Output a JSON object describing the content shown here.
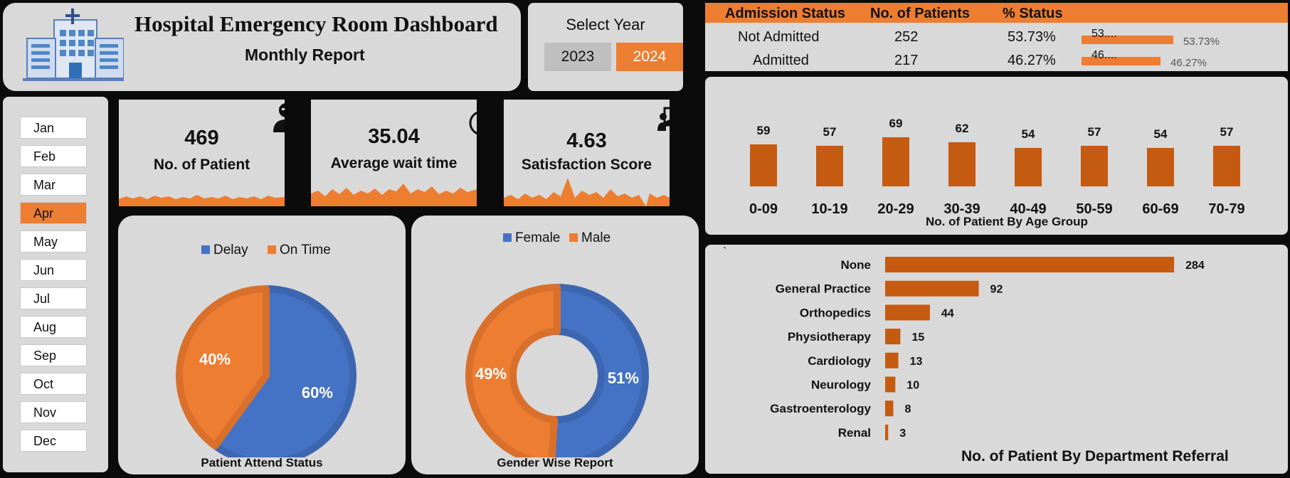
{
  "header": {
    "title": "Hospital Emergency Room Dashboard",
    "subtitle": "Monthly Report"
  },
  "year_select": {
    "label": "Select Year",
    "options": [
      "2023",
      "2024"
    ],
    "selected": "2024"
  },
  "months": {
    "items": [
      "Jan",
      "Feb",
      "Mar",
      "Apr",
      "May",
      "Jun",
      "Jul",
      "Aug",
      "Sep",
      "Oct",
      "Nov",
      "Dec"
    ],
    "selected": "Apr"
  },
  "kpis": {
    "patients": {
      "value": "469",
      "label": "No. of Patient",
      "icon": "patient-icon"
    },
    "wait": {
      "value": "35.04",
      "label": "Average wait time",
      "icon": "stopwatch-icon"
    },
    "satisfaction": {
      "value": "4.63",
      "label": "Satisfaction Score",
      "icon": "presentation-icon"
    }
  },
  "admission": {
    "headers": [
      "Admission Status",
      "No. of Patients",
      "% Status"
    ],
    "rows": [
      {
        "status": "Not Admitted",
        "count": "252",
        "pct": "53.73%",
        "bar_label": "53....",
        "bar_value": 53.73
      },
      {
        "status": "Admitted",
        "count": "217",
        "pct": "46.27%",
        "bar_label": "46....",
        "bar_value": 46.27
      }
    ]
  },
  "colors": {
    "orange": "#ed7d31",
    "dark_orange": "#c55a11",
    "blue": "#4472c4",
    "panel": "#d9d9d9"
  },
  "chart_data": [
    {
      "type": "bar",
      "title": "No. of Patient By Age  Group",
      "categories": [
        "0-09",
        "10-19",
        "20-29",
        "30-39",
        "40-49",
        "50-59",
        "60-69",
        "70-79"
      ],
      "values": [
        59,
        57,
        69,
        62,
        54,
        57,
        54,
        57
      ],
      "orientation": "vertical",
      "color": "#c55a11",
      "data_labels": true
    },
    {
      "type": "bar",
      "title": "No. of Patient By Department Referral",
      "categories": [
        "None",
        "General Practice",
        "Orthopedics",
        "Physiotherapy",
        "Cardiology",
        "Neurology",
        "Gastroenterology",
        "Renal"
      ],
      "values": [
        284,
        92,
        44,
        15,
        13,
        10,
        8,
        3
      ],
      "orientation": "horizontal",
      "color": "#c55a11",
      "data_labels": true,
      "annotation": "`"
    },
    {
      "type": "pie",
      "title": "Patient Attend Status",
      "series": [
        {
          "name": "Delay",
          "value": 60,
          "label": "60%",
          "color": "#4472c4"
        },
        {
          "name": "On Time",
          "value": 40,
          "label": "40%",
          "color": "#ed7d31"
        }
      ],
      "legend": "top"
    },
    {
      "type": "pie",
      "subtype": "donut",
      "title": "Gender Wise Report",
      "series": [
        {
          "name": "Female",
          "value": 51,
          "label": "51%",
          "color": "#4472c4"
        },
        {
          "name": "Male",
          "value": 49,
          "label": "49%",
          "color": "#ed7d31"
        }
      ],
      "legend": "top"
    }
  ]
}
